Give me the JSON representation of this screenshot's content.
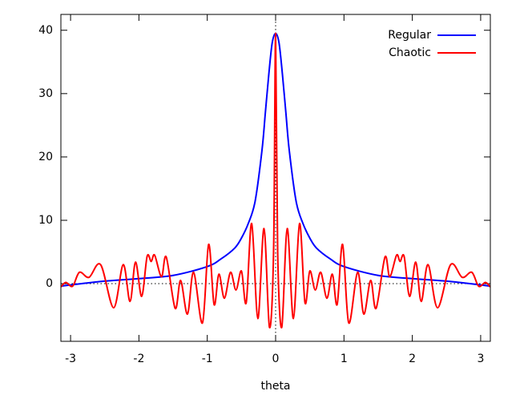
{
  "chart_data": {
    "type": "line",
    "xlabel": "theta",
    "xlim": [
      -3.14159,
      3.14159
    ],
    "ylim": [
      -9.1,
      42.5
    ],
    "xticks": [
      -3,
      -2,
      -1,
      0,
      1,
      2,
      3
    ],
    "yticks": [
      0,
      10,
      20,
      30,
      40
    ],
    "zeroaxis": true,
    "legend": "upper right",
    "series": [
      {
        "name": "Regular",
        "color": "#0000ff",
        "x": [
          -3.14,
          -3,
          -2.5,
          -2,
          -1.5,
          -1,
          -0.8,
          -0.6,
          -0.5,
          -0.4,
          -0.3,
          -0.2,
          -0.15,
          -0.1,
          -0.05,
          0,
          0.05,
          0.1,
          0.15,
          0.2,
          0.3,
          0.4,
          0.5,
          0.6,
          0.8,
          1,
          1.5,
          2,
          2.5,
          3,
          3.14
        ],
        "values": [
          -0.4,
          -0.2,
          0.4,
          0.8,
          1.3,
          2.7,
          3.9,
          5.6,
          7.2,
          9.5,
          13,
          21,
          27,
          33,
          38,
          39.5,
          38,
          33,
          27,
          21,
          13,
          9.5,
          7.2,
          5.6,
          3.9,
          2.7,
          1.3,
          0.8,
          0.4,
          -0.2,
          -0.4
        ]
      },
      {
        "name": "Chaotic",
        "color": "#ff0000",
        "x": [
          -3.14,
          -3.07,
          -2.97,
          -2.87,
          -2.73,
          -2.56,
          -2.37,
          -2.23,
          -2.13,
          -2.05,
          -1.96,
          -1.88,
          -1.82,
          -1.77,
          -1.67,
          -1.6,
          -1.47,
          -1.39,
          -1.29,
          -1.2,
          -1.07,
          -0.98,
          -0.9,
          -0.83,
          -0.75,
          -0.66,
          -0.58,
          -0.5,
          -0.43,
          -0.35,
          -0.26,
          -0.17,
          -0.09,
          -0.03,
          0,
          0.03,
          0.09,
          0.17,
          0.26,
          0.35,
          0.43,
          0.5,
          0.58,
          0.66,
          0.75,
          0.83,
          0.9,
          0.98,
          1.07,
          1.2,
          1.29,
          1.39,
          1.47,
          1.6,
          1.67,
          1.77,
          1.82,
          1.88,
          1.96,
          2.05,
          2.13,
          2.23,
          2.37,
          2.56,
          2.73,
          2.87,
          2.97,
          3.07,
          3.14
        ],
        "values": [
          -0.5,
          0.2,
          -0.4,
          1.8,
          1,
          3,
          -3.8,
          3,
          -2.8,
          3.4,
          -2,
          4.3,
          3.5,
          4.5,
          1.1,
          4.2,
          -3.9,
          0.5,
          -4.8,
          1.8,
          -6.2,
          6.2,
          -3.3,
          1.5,
          -2.3,
          1.8,
          -1,
          2,
          -3,
          9.5,
          -5.5,
          8.7,
          -6.9,
          5,
          39.5,
          5,
          -6.9,
          8.7,
          -5.5,
          9.5,
          -3,
          2,
          -1,
          1.8,
          -2.3,
          1.5,
          -3.3,
          6.2,
          -6.2,
          1.8,
          -4.8,
          0.5,
          -3.9,
          4.2,
          1.1,
          4.5,
          3.5,
          4.3,
          -2,
          3.4,
          -2.8,
          3,
          -3.8,
          3,
          1,
          1.8,
          -0.4,
          0.2,
          -0.5
        ]
      }
    ]
  }
}
